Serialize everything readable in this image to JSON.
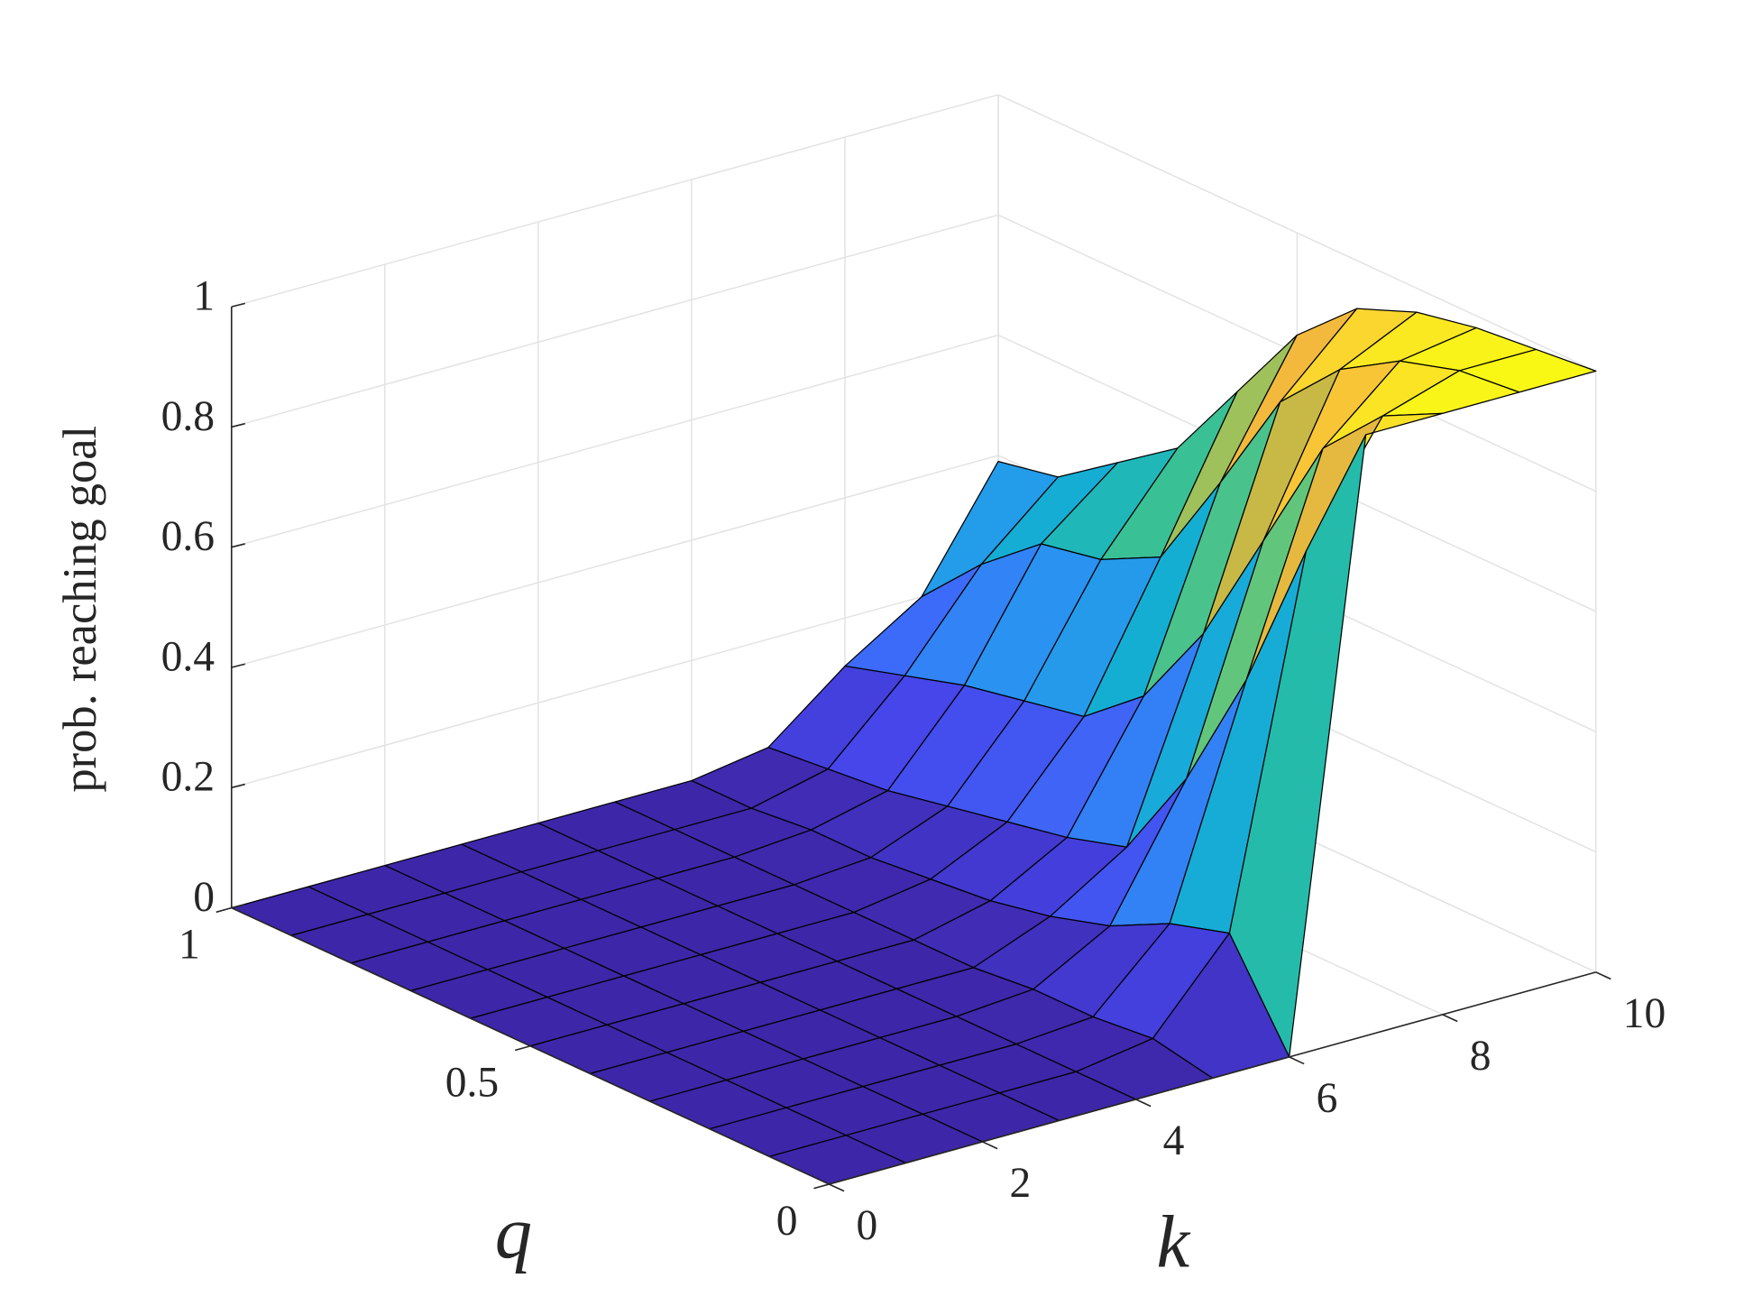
{
  "chart_data": {
    "type": "surface",
    "xlabel": "k",
    "ylabel": "q",
    "zlabel": "prob. reaching goal",
    "x": [
      0,
      1,
      2,
      3,
      4,
      5,
      6,
      7,
      8,
      9,
      10
    ],
    "y": [
      0,
      0.1,
      0.2,
      0.3,
      0.4,
      0.5,
      0.6,
      0.7,
      0.8,
      0.9,
      1
    ],
    "z": [
      [
        0,
        0,
        0,
        0,
        0,
        0,
        0,
        1,
        1,
        1,
        1
      ],
      [
        0,
        0,
        0,
        0,
        0,
        0.02,
        0.16,
        0.76,
        0.95,
        0.99,
        0.99
      ],
      [
        0,
        0,
        0,
        0,
        0,
        0.01,
        0.13,
        0.5,
        0.85,
        0.96,
        0.98
      ],
      [
        0,
        0,
        0,
        0,
        0,
        0.01,
        0.08,
        0.29,
        0.65,
        0.9,
        0.96
      ],
      [
        0,
        0,
        0,
        0,
        0,
        0,
        0.05,
        0.13,
        0.45,
        0.8,
        0.92
      ],
      [
        0,
        0,
        0,
        0,
        0,
        0,
        0.03,
        0.1,
        0.3,
        0.62,
        0.83
      ],
      [
        0,
        0,
        0,
        0,
        0,
        0,
        0.02,
        0.08,
        0.22,
        0.45,
        0.69
      ],
      [
        0,
        0,
        0,
        0,
        0,
        0,
        0.01,
        0.06,
        0.2,
        0.4,
        0.55
      ],
      [
        0,
        0,
        0,
        0,
        0,
        0,
        0.01,
        0.04,
        0.18,
        0.38,
        0.48
      ],
      [
        0,
        0,
        0,
        0,
        0,
        0,
        0,
        0.03,
        0.15,
        0.3,
        0.41
      ],
      [
        0,
        0,
        0,
        0,
        0,
        0,
        0,
        0.02,
        0.12,
        0.2,
        0.39
      ]
    ],
    "xlim": [
      0,
      10
    ],
    "ylim": [
      0,
      1
    ],
    "zlim": [
      0,
      1
    ],
    "xticks": [
      0,
      2,
      4,
      6,
      8,
      10
    ],
    "yticks": [
      0,
      0.5,
      1
    ],
    "zticks": [
      0,
      0.2,
      0.4,
      0.6,
      0.8,
      1
    ],
    "grid": true,
    "colormap": "parula",
    "edge_color": "#000000"
  }
}
